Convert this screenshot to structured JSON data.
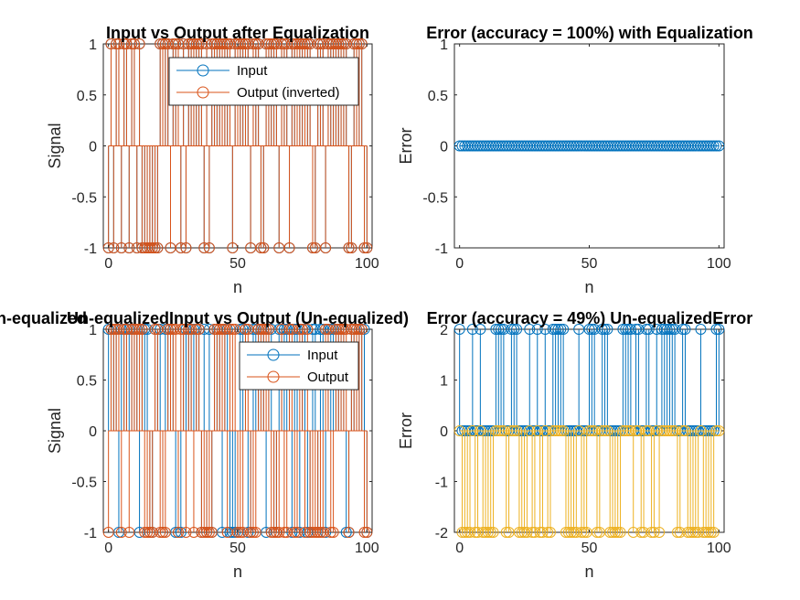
{
  "figure": {
    "background": "#ffffff",
    "colors": {
      "blue": "#0072BD",
      "orange": "#D95319",
      "yellow": "#EDB120",
      "axis": "#262626"
    }
  },
  "chart_data": [
    {
      "id": "p1",
      "type": "stem",
      "title": "Input vs Output after Equalization",
      "xlabel": "n",
      "ylabel": "Signal",
      "xlim": [
        -2,
        102
      ],
      "ylim": [
        -1,
        1
      ],
      "xticks": [
        0,
        50,
        100
      ],
      "yticks": [
        -1,
        -0.5,
        0,
        0.5,
        1
      ],
      "ytick_labels": [
        "-1",
        "-0.5",
        "0",
        "0.5",
        "1"
      ],
      "legend": {
        "placement": "top-right",
        "entries": [
          "Input",
          "Output (inverted)"
        ]
      },
      "series": [
        {
          "name": "Input",
          "color": "#0072BD",
          "x_start": 0,
          "x_step": 1,
          "values": [
            -1,
            1,
            -1,
            1,
            1,
            -1,
            1,
            1,
            -1,
            1,
            1,
            -1,
            1,
            -1,
            -1,
            -1,
            -1,
            -1,
            -1,
            -1,
            1,
            1,
            1,
            1,
            -1,
            1,
            1,
            1,
            -1,
            1,
            -1,
            1,
            1,
            1,
            1,
            1,
            1,
            -1,
            1,
            -1,
            1,
            1,
            1,
            1,
            1,
            1,
            1,
            1,
            -1,
            1,
            1,
            1,
            1,
            1,
            1,
            -1,
            1,
            1,
            1,
            -1,
            -1,
            1,
            1,
            1,
            1,
            1,
            -1,
            1,
            1,
            1,
            -1,
            1,
            1,
            1,
            1,
            1,
            1,
            1,
            1,
            -1,
            -1,
            1,
            1,
            1,
            -1,
            1,
            1,
            1,
            1,
            1,
            1,
            1,
            1,
            -1,
            -1,
            1,
            1,
            1,
            1,
            -1,
            -1
          ]
        },
        {
          "name": "Output (inverted)",
          "color": "#D95319",
          "x_start": 0,
          "x_step": 1,
          "values": [
            -1,
            1,
            -1,
            1,
            1,
            -1,
            1,
            1,
            -1,
            1,
            1,
            -1,
            1,
            -1,
            -1,
            -1,
            -1,
            -1,
            -1,
            -1,
            1,
            1,
            1,
            1,
            -1,
            1,
            1,
            1,
            -1,
            1,
            -1,
            1,
            1,
            1,
            1,
            1,
            1,
            -1,
            1,
            -1,
            1,
            1,
            1,
            1,
            1,
            1,
            1,
            1,
            -1,
            1,
            1,
            1,
            1,
            1,
            1,
            -1,
            1,
            1,
            1,
            -1,
            -1,
            1,
            1,
            1,
            1,
            1,
            -1,
            1,
            1,
            1,
            -1,
            1,
            1,
            1,
            1,
            1,
            1,
            1,
            1,
            -1,
            -1,
            1,
            1,
            1,
            -1,
            1,
            1,
            1,
            1,
            1,
            1,
            1,
            1,
            -1,
            -1,
            1,
            1,
            1,
            1,
            -1,
            -1
          ]
        }
      ]
    },
    {
      "id": "p2",
      "type": "stem",
      "title": "Error (accuracy = 100%) with Equalization",
      "xlabel": "n",
      "ylabel": "Error",
      "xlim": [
        -2,
        102
      ],
      "ylim": [
        -1,
        1
      ],
      "xticks": [
        0,
        50,
        100
      ],
      "yticks": [
        -1,
        -0.5,
        0,
        0.5,
        1
      ],
      "ytick_labels": [
        "-1",
        "-0.5",
        "0",
        "0.5",
        "1"
      ],
      "series": [
        {
          "color": "#0072BD",
          "x_start": 0,
          "x_step": 1,
          "constant": 0,
          "count": 101
        }
      ]
    },
    {
      "id": "p3",
      "type": "stem",
      "title": "Un-equalizedInput vs Output (Un-equalized)",
      "xlabel": "n",
      "ylabel": "Signal",
      "xlim": [
        -2,
        102
      ],
      "ylim": [
        -1,
        1
      ],
      "xticks": [
        0,
        50,
        100
      ],
      "yticks": [
        -1,
        -0.5,
        0,
        0.5,
        1
      ],
      "ytick_labels": [
        "-1",
        "-0.5",
        "0",
        "0.5",
        "1"
      ],
      "legend": {
        "placement": "top-right",
        "entries": [
          "Input",
          "Output"
        ]
      },
      "series": [
        {
          "name": "Input",
          "color": "#0072BD",
          "x_start": 0,
          "x_step": 1,
          "values": [
            1,
            1,
            1,
            1,
            -1,
            1,
            1,
            1,
            1,
            1,
            1,
            1,
            -1,
            1,
            1,
            1,
            -1,
            -1,
            1,
            1,
            1,
            -1,
            1,
            1,
            1,
            1,
            -1,
            -1,
            -1,
            1,
            1,
            1,
            1,
            1,
            1,
            1,
            -1,
            1,
            -1,
            1,
            -1,
            1,
            1,
            1,
            -1,
            1,
            1,
            -1,
            -1,
            -1,
            -1,
            1,
            1,
            1,
            -1,
            -1,
            1,
            1,
            1,
            1,
            1,
            -1,
            1,
            1,
            -1,
            -1,
            1,
            1,
            1,
            1,
            1,
            -1,
            1,
            1,
            -1,
            1,
            1,
            -1,
            -1,
            1,
            1,
            -1,
            1,
            1,
            -1,
            1,
            1,
            1,
            1,
            1,
            1,
            1,
            -1,
            -1,
            1,
            1,
            1,
            1,
            1,
            1,
            -1
          ]
        },
        {
          "name": "Output",
          "color": "#D95319",
          "x_start": 0,
          "x_step": 1,
          "values": [
            -1,
            1,
            1,
            1,
            1,
            -1,
            1,
            1,
            -1,
            1,
            1,
            1,
            1,
            1,
            -1,
            -1,
            -1,
            -1,
            1,
            1,
            -1,
            -1,
            -1,
            1,
            1,
            1,
            1,
            -1,
            1,
            1,
            -1,
            1,
            1,
            -1,
            1,
            1,
            -1,
            -1,
            -1,
            -1,
            -1,
            1,
            1,
            1,
            1,
            1,
            -1,
            1,
            1,
            1,
            -1,
            -1,
            -1,
            1,
            1,
            -1,
            -1,
            -1,
            1,
            1,
            1,
            1,
            1,
            -1,
            -1,
            -1,
            -1,
            1,
            -1,
            -1,
            1,
            1,
            -1,
            -1,
            1,
            1,
            -1,
            1,
            -1,
            -1,
            -1,
            -1,
            -1,
            -1,
            1,
            1,
            -1,
            -1,
            1,
            1,
            1,
            1,
            1,
            -1,
            1,
            1,
            1,
            1,
            1,
            -1,
            -1
          ]
        }
      ]
    },
    {
      "id": "p4",
      "type": "stem",
      "title": "Error (accuracy = 49%) Un-equalizedError",
      "xlabel": "n",
      "ylabel": "Error",
      "xlim": [
        -2,
        102
      ],
      "ylim": [
        -2,
        2
      ],
      "xticks": [
        0,
        50,
        100
      ],
      "yticks": [
        -2,
        -1,
        0,
        1,
        2
      ],
      "ytick_labels": [
        "-2",
        "-1",
        "0",
        "1",
        "2"
      ],
      "series": [
        {
          "color": "#0072BD",
          "x_start": 0,
          "x_step": 1,
          "values": [
            2,
            0,
            0,
            0,
            0,
            2,
            0,
            0,
            2,
            0,
            0,
            0,
            0,
            0,
            2,
            2,
            2,
            2,
            0,
            0,
            2,
            2,
            2,
            0,
            0,
            0,
            0,
            2,
            0,
            0,
            2,
            0,
            0,
            2,
            0,
            0,
            2,
            2,
            2,
            2,
            2,
            0,
            0,
            0,
            0,
            0,
            2,
            0,
            0,
            0,
            2,
            2,
            2,
            0,
            0,
            2,
            2,
            2,
            0,
            0,
            0,
            0,
            0,
            2,
            2,
            2,
            2,
            0,
            2,
            2,
            0,
            0,
            2,
            2,
            0,
            0,
            2,
            0,
            2,
            2,
            2,
            2,
            2,
            2,
            0,
            0,
            2,
            2,
            0,
            0,
            0,
            0,
            0,
            2,
            0,
            0,
            0,
            0,
            0,
            2,
            2
          ]
        },
        {
          "color": "#EDB120",
          "x_start": 0,
          "x_step": 1,
          "values": [
            0,
            -2,
            -2,
            -2,
            -2,
            0,
            -2,
            -2,
            0,
            -2,
            -2,
            -2,
            -2,
            -2,
            0,
            0,
            0,
            0,
            -2,
            -2,
            0,
            0,
            0,
            -2,
            -2,
            -2,
            -2,
            0,
            -2,
            -2,
            0,
            -2,
            -2,
            0,
            -2,
            -2,
            0,
            0,
            0,
            0,
            0,
            -2,
            -2,
            -2,
            -2,
            -2,
            0,
            -2,
            -2,
            -2,
            0,
            0,
            0,
            -2,
            -2,
            0,
            0,
            0,
            -2,
            -2,
            -2,
            -2,
            -2,
            0,
            0,
            0,
            0,
            -2,
            0,
            0,
            -2,
            -2,
            0,
            0,
            -2,
            -2,
            0,
            -2,
            0,
            0,
            0,
            0,
            0,
            0,
            -2,
            -2,
            0,
            0,
            -2,
            -2,
            -2,
            -2,
            -2,
            0,
            -2,
            -2,
            -2,
            -2,
            -2,
            0,
            0
          ]
        }
      ]
    }
  ],
  "title_fragment_p1": "n-equalized"
}
